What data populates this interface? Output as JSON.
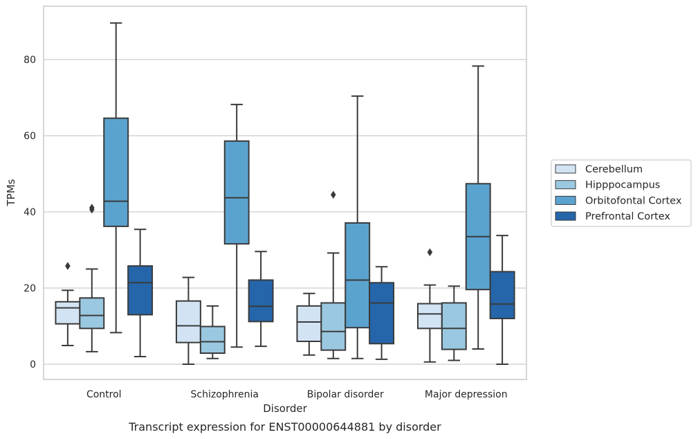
{
  "chart_data": {
    "type": "box",
    "caption": "Transcript expression for ENST00000644881 by disorder",
    "xlabel": "Disorder",
    "ylabel": "TPMs",
    "ylim": [
      -4,
      94
    ],
    "yticks": [
      0,
      20,
      40,
      60,
      80
    ],
    "grid": "horizontal",
    "legend_position": "right",
    "categories": [
      "Control",
      "Schizophrenia",
      "Bipolar disorder",
      "Major depression"
    ],
    "series": [
      {
        "name": "Cerebellum",
        "color": "#d2e3f3",
        "boxes": [
          {
            "min": 4.9,
            "q1": 10.6,
            "median": 14.8,
            "q3": 16.4,
            "max": 19.4,
            "outliers": [
              25.8
            ]
          },
          {
            "min": 0.0,
            "q1": 5.7,
            "median": 10.1,
            "q3": 16.6,
            "max": 22.8,
            "outliers": []
          },
          {
            "min": 2.4,
            "q1": 6.0,
            "median": 11.1,
            "q3": 15.3,
            "max": 18.6,
            "outliers": []
          },
          {
            "min": 0.6,
            "q1": 9.4,
            "median": 13.2,
            "q3": 15.9,
            "max": 20.8,
            "outliers": [
              29.4
            ]
          }
        ]
      },
      {
        "name": "Hipppocampus",
        "color": "#9ac8e0",
        "boxes": [
          {
            "min": 3.3,
            "q1": 9.4,
            "median": 12.8,
            "q3": 17.4,
            "max": 25.0,
            "outliers": [
              40.6,
              41.1
            ]
          },
          {
            "min": 1.5,
            "q1": 2.9,
            "median": 5.9,
            "q3": 9.9,
            "max": 15.3,
            "outliers": []
          },
          {
            "min": 1.5,
            "q1": 3.7,
            "median": 8.6,
            "q3": 16.1,
            "max": 29.2,
            "outliers": [
              44.5
            ]
          },
          {
            "min": 1.0,
            "q1": 3.9,
            "median": 9.4,
            "q3": 16.1,
            "max": 20.5,
            "outliers": []
          }
        ]
      },
      {
        "name": "Orbitofontal Cortex",
        "color": "#5ba3cf",
        "boxes": [
          {
            "min": 8.3,
            "q1": 36.2,
            "median": 42.8,
            "q3": 64.6,
            "max": 89.6,
            "outliers": []
          },
          {
            "min": 4.5,
            "q1": 31.6,
            "median": 43.7,
            "q3": 58.6,
            "max": 68.2,
            "outliers": []
          },
          {
            "min": 1.5,
            "q1": 9.6,
            "median": 22.1,
            "q3": 37.1,
            "max": 70.4,
            "outliers": []
          },
          {
            "min": 4.0,
            "q1": 19.6,
            "median": 33.5,
            "q3": 47.4,
            "max": 78.3,
            "outliers": []
          }
        ]
      },
      {
        "name": "Prefrontal Cortex",
        "color": "#2566aa",
        "boxes": [
          {
            "min": 2.0,
            "q1": 13.0,
            "median": 21.4,
            "q3": 25.8,
            "max": 35.4,
            "outliers": []
          },
          {
            "min": 4.7,
            "q1": 11.2,
            "median": 15.2,
            "q3": 22.1,
            "max": 29.6,
            "outliers": []
          },
          {
            "min": 1.3,
            "q1": 5.4,
            "median": 16.1,
            "q3": 21.4,
            "max": 25.6,
            "outliers": []
          },
          {
            "min": 0.0,
            "q1": 12.0,
            "median": 15.8,
            "q3": 24.3,
            "max": 33.8,
            "outliers": []
          }
        ]
      }
    ]
  }
}
